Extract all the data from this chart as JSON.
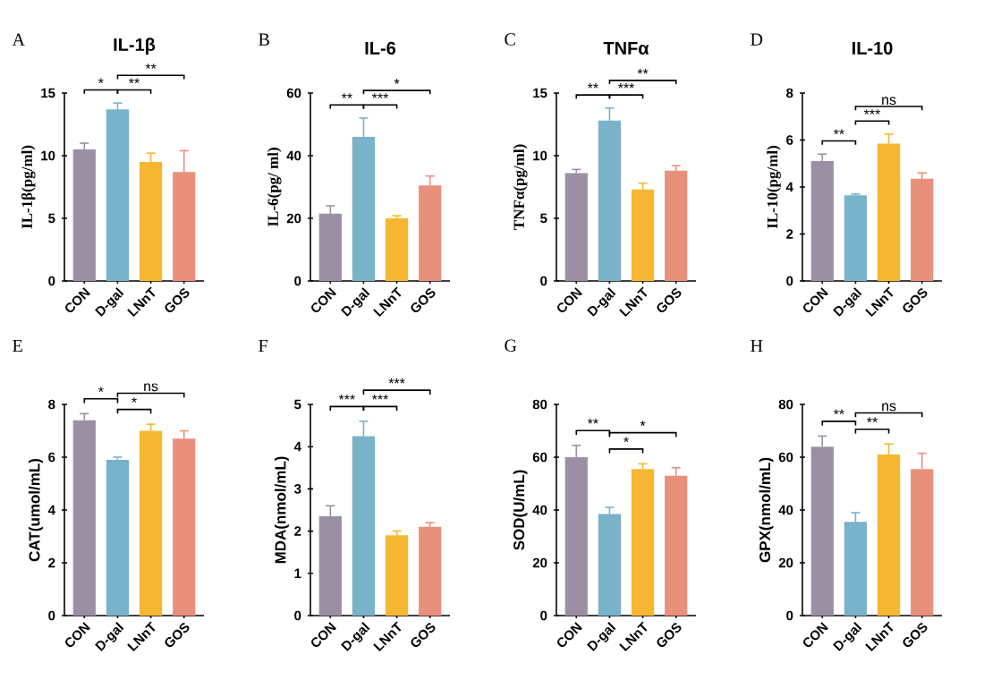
{
  "chart_data": [
    {
      "type": "bar",
      "title": "IL-1β",
      "ylabel": "IL-1β(pg/ml)",
      "categories": [
        "CON",
        "D-gal",
        "LNnT",
        "GOS"
      ],
      "values": [
        10.5,
        13.7,
        9.5,
        8.7
      ],
      "errors": [
        0.5,
        0.5,
        0.7,
        1.7
      ],
      "colors": [
        "#9b8fa3",
        "#78b3c9",
        "#f5b731",
        "#e8907c"
      ],
      "ylim": [
        0,
        15
      ],
      "yticks": [
        0,
        5,
        10,
        15
      ],
      "annotations": [
        "A",
        "*",
        "**",
        "**"
      ]
    },
    {
      "type": "bar",
      "title": "IL-6",
      "ylabel": "IL-6(pg/ ml)",
      "categories": [
        "CON",
        "D-gal",
        "LNnT",
        "GOS"
      ],
      "values": [
        21.5,
        46,
        20,
        30.5
      ],
      "errors": [
        2.5,
        6,
        0.8,
        3
      ],
      "colors": [
        "#9b8fa3",
        "#78b3c9",
        "#f5b731",
        "#e8907c"
      ],
      "ylim": [
        0,
        60
      ],
      "yticks": [
        0,
        20,
        40,
        60
      ],
      "annotations": [
        "B",
        "**",
        "***",
        "*"
      ]
    },
    {
      "type": "bar",
      "title": "TNFα",
      "ylabel": "TNFα(pg/ml)",
      "categories": [
        "CON",
        "D-gal",
        "LNnT",
        "GOS"
      ],
      "values": [
        8.6,
        12.8,
        7.3,
        8.8
      ],
      "errors": [
        0.3,
        1,
        0.5,
        0.4
      ],
      "colors": [
        "#9b8fa3",
        "#78b3c9",
        "#f5b731",
        "#e8907c"
      ],
      "ylim": [
        0,
        15
      ],
      "yticks": [
        0,
        5,
        10,
        15
      ],
      "annotations": [
        "C",
        "**",
        "***",
        "**"
      ]
    },
    {
      "type": "bar",
      "title": "IL-10",
      "ylabel": "IL-10(pg/ml)",
      "categories": [
        "CON",
        "D-gal",
        "LNnT",
        "GOS"
      ],
      "values": [
        5.1,
        3.65,
        5.85,
        4.35
      ],
      "errors": [
        0.3,
        0.05,
        0.4,
        0.25
      ],
      "colors": [
        "#9b8fa3",
        "#78b3c9",
        "#f5b731",
        "#e8907c"
      ],
      "ylim": [
        0,
        8
      ],
      "yticks": [
        0,
        2,
        4,
        6,
        8
      ],
      "annotations": [
        "D",
        "**",
        "***",
        "ns"
      ]
    },
    {
      "type": "bar",
      "ylabel": "CAT(umol/mL)",
      "categories": [
        "CON",
        "D-gal",
        "LNnT",
        "GOS"
      ],
      "values": [
        7.4,
        5.9,
        7.0,
        6.7
      ],
      "errors": [
        0.25,
        0.1,
        0.25,
        0.3
      ],
      "colors": [
        "#9b8fa3",
        "#78b3c9",
        "#f5b731",
        "#e8907c"
      ],
      "ylim": [
        0,
        8
      ],
      "yticks": [
        0,
        2,
        4,
        6,
        8
      ],
      "annotations": [
        "E",
        "*",
        "*",
        "ns"
      ]
    },
    {
      "type": "bar",
      "ylabel": "MDA(nmol/mL)",
      "categories": [
        "CON",
        "D-gal",
        "LNnT",
        "GOS"
      ],
      "values": [
        2.35,
        4.25,
        1.9,
        2.1
      ],
      "errors": [
        0.25,
        0.35,
        0.1,
        0.1
      ],
      "colors": [
        "#9b8fa3",
        "#78b3c9",
        "#f5b731",
        "#e8907c"
      ],
      "ylim": [
        0,
        5
      ],
      "yticks": [
        0,
        1,
        2,
        3,
        4,
        5
      ],
      "annotations": [
        "F",
        "***",
        "***",
        "***"
      ]
    },
    {
      "type": "bar",
      "ylabel": "SOD(U/mL)",
      "categories": [
        "CON",
        "D-gal",
        "LNnT",
        "GOS"
      ],
      "values": [
        60,
        38.5,
        55.5,
        53
      ],
      "errors": [
        4.5,
        2.5,
        2,
        3
      ],
      "colors": [
        "#9b8fa3",
        "#78b3c9",
        "#f5b731",
        "#e8907c"
      ],
      "ylim": [
        0,
        80
      ],
      "yticks": [
        0,
        20,
        40,
        60,
        80
      ],
      "annotations": [
        "G",
        "**",
        "*",
        "*"
      ]
    },
    {
      "type": "bar",
      "ylabel": "GPX(nmol/mL)",
      "categories": [
        "CON",
        "D-gal",
        "LNnT",
        "GOS"
      ],
      "values": [
        64,
        35.5,
        61,
        55.5
      ],
      "errors": [
        4,
        3.5,
        4,
        6
      ],
      "colors": [
        "#9b8fa3",
        "#78b3c9",
        "#f5b731",
        "#e8907c"
      ],
      "ylim": [
        0,
        80
      ],
      "yticks": [
        0,
        20,
        40,
        60,
        80
      ],
      "annotations": [
        "H",
        "**",
        "**",
        "ns"
      ]
    }
  ]
}
